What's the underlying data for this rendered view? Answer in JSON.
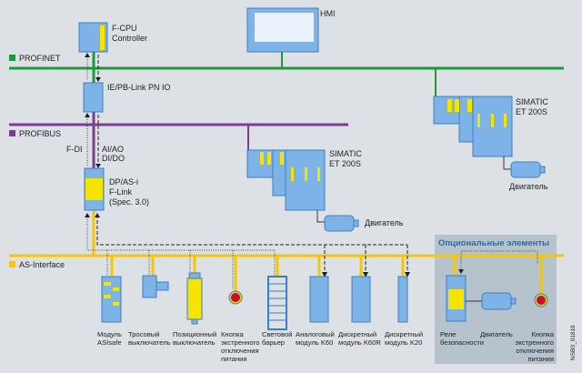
{
  "colors": {
    "profinet": "#1a9a3c",
    "profibus": "#7a3d8f",
    "as_interface": "#f7c600",
    "device": "#7db3e6",
    "optional_box": "#b7c3cc",
    "optional_title": "#1d6fb0"
  },
  "legend": {
    "profinet": "PROFINET",
    "profibus": "PROFIBUS",
    "as_interface": "AS-Interface"
  },
  "devices": {
    "fcpu": [
      "F-CPU",
      "Controller"
    ],
    "hmi": "HMI",
    "ie_pb_link": "IE/PB-Link PN IO",
    "f_link": [
      "DP/AS-i",
      "F-Link",
      "(Spec. 3.0)"
    ],
    "f_di": "F-DI",
    "ai_ao": [
      "AI/AO",
      "DI/DO"
    ],
    "et200s_profibus": [
      "SIMATIC",
      "ET 200S"
    ],
    "et200s_profinet": [
      "SIMATIC",
      "ET 200S"
    ],
    "motor_profibus": "Двигатель",
    "motor_profinet": "Двигатель"
  },
  "as_i_devices": [
    {
      "label": [
        "Модуль",
        "ASIsafe"
      ]
    },
    {
      "label": [
        "Тросовый",
        "выключатель"
      ]
    },
    {
      "label": [
        "Позиционный",
        "выключатель"
      ]
    },
    {
      "label": [
        "Кнопка",
        "экстренного",
        "отключения",
        "питания"
      ]
    },
    {
      "label": [
        "Световой",
        "барьер"
      ]
    },
    {
      "label": [
        "Аналоговый",
        "модуль K60"
      ]
    },
    {
      "label": [
        "Дискретный",
        "модуль K60R"
      ]
    },
    {
      "label": [
        "Дискретный",
        "модуль K20"
      ]
    }
  ],
  "optional": {
    "title": "Опциональные элементы",
    "items": [
      {
        "label": [
          "Реле",
          "безопасности"
        ]
      },
      {
        "label": [
          "Двигатель"
        ]
      },
      {
        "label": [
          "Кнопка",
          "экстренного",
          "отключения",
          "питания"
        ]
      }
    ]
  },
  "figure_id": "NSB0_01819"
}
